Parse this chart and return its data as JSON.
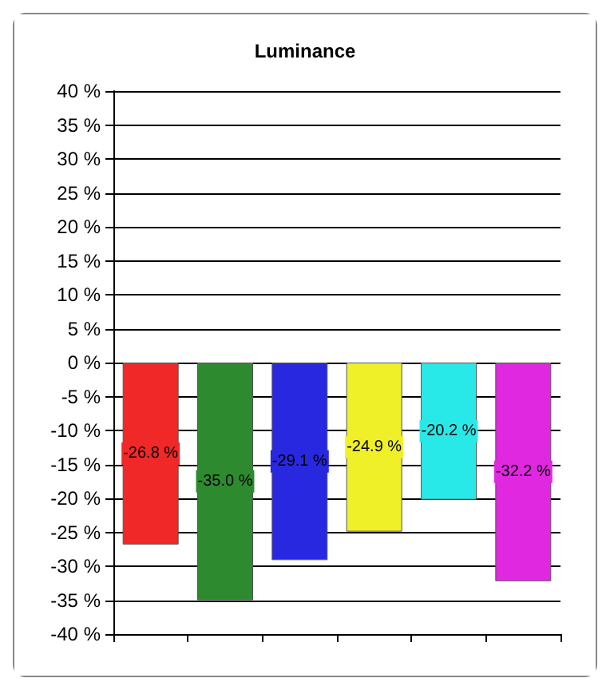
{
  "chart_data": {
    "type": "bar",
    "title": "Luminance",
    "categories": [
      null,
      null,
      null,
      null,
      null,
      null
    ],
    "values": [
      -26.8,
      -35.0,
      -29.1,
      -24.9,
      -20.2,
      -32.2
    ],
    "colors": [
      "#f02828",
      "#2e8a2e",
      "#2828e0",
      "#f0f028",
      "#28e8e8",
      "#e028e0"
    ],
    "value_labels": [
      "-26.8 %",
      "-35.0 %",
      "-29.1 %",
      "-24.9 %",
      "-20.2 %",
      "-32.2 %"
    ],
    "ylim": [
      -40,
      40
    ],
    "yticks": [
      {
        "value": -40,
        "label": "-40 %"
      },
      {
        "value": -35,
        "label": "-35 %"
      },
      {
        "value": -30,
        "label": "-30 %"
      },
      {
        "value": -25,
        "label": "-25 %"
      },
      {
        "value": -20,
        "label": "-20 %"
      },
      {
        "value": -15,
        "label": "-15 %"
      },
      {
        "value": -10,
        "label": "-10 %"
      },
      {
        "value": -5,
        "label": "-5 %"
      },
      {
        "value": 0,
        "label": "0 %"
      },
      {
        "value": 5,
        "label": "5 %"
      },
      {
        "value": 10,
        "label": "10 %"
      },
      {
        "value": 15,
        "label": "15 %"
      },
      {
        "value": 20,
        "label": "20 %"
      },
      {
        "value": 25,
        "label": "25 %"
      },
      {
        "value": 30,
        "label": "30 %"
      },
      {
        "value": 35,
        "label": "35 %"
      },
      {
        "value": 40,
        "label": "40 %"
      }
    ],
    "grid": "y"
  }
}
